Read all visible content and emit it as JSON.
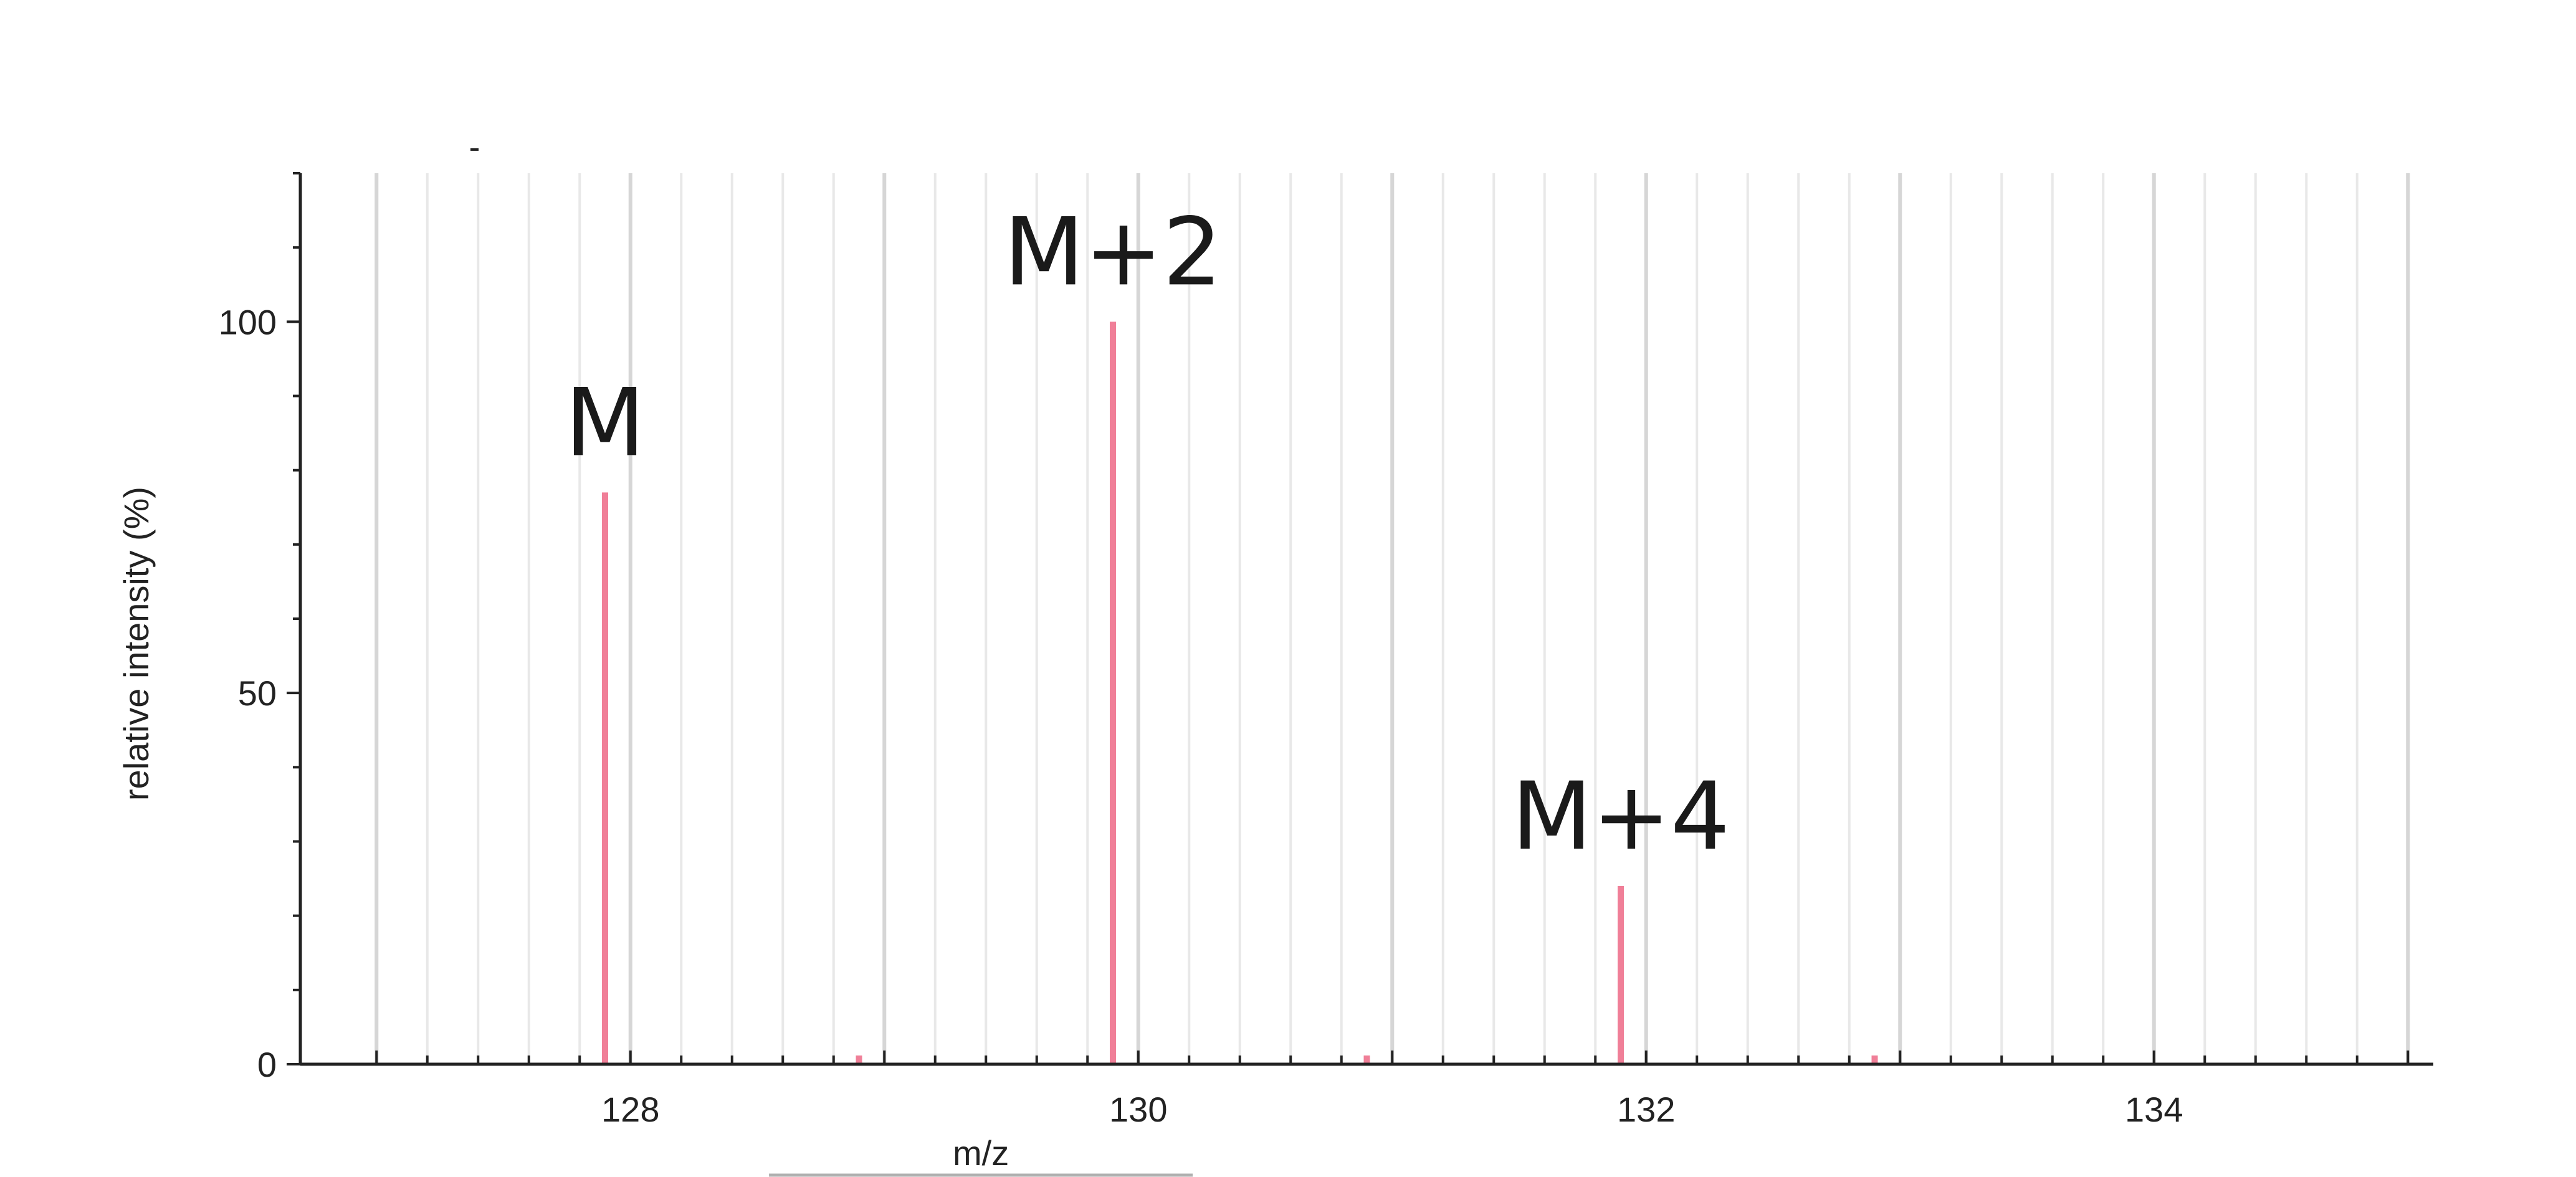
{
  "chart_data": {
    "type": "bar",
    "xlabel": "m/z",
    "ylabel": "relative intensity (%)",
    "xlim": [
      126.7,
      135.1
    ],
    "ylim": [
      0,
      120
    ],
    "x_ticks": [
      "128",
      "130",
      "132",
      "134"
    ],
    "y_ticks": [
      "0",
      "50",
      "100"
    ],
    "grid": "vertical",
    "series": [
      {
        "x": [
          127.9,
          128.9,
          129.9,
          130.9,
          131.9,
          132.9
        ],
        "values": [
          77,
          0.8,
          100,
          1.2,
          24,
          0.3
        ],
        "color": "#f07f98"
      }
    ],
    "annotations": [
      {
        "text": "M",
        "x": 127.9,
        "y": 77
      },
      {
        "text": "M+2",
        "x": 129.9,
        "y": 100
      },
      {
        "text": "M+4",
        "x": 131.9,
        "y": 24
      }
    ]
  }
}
